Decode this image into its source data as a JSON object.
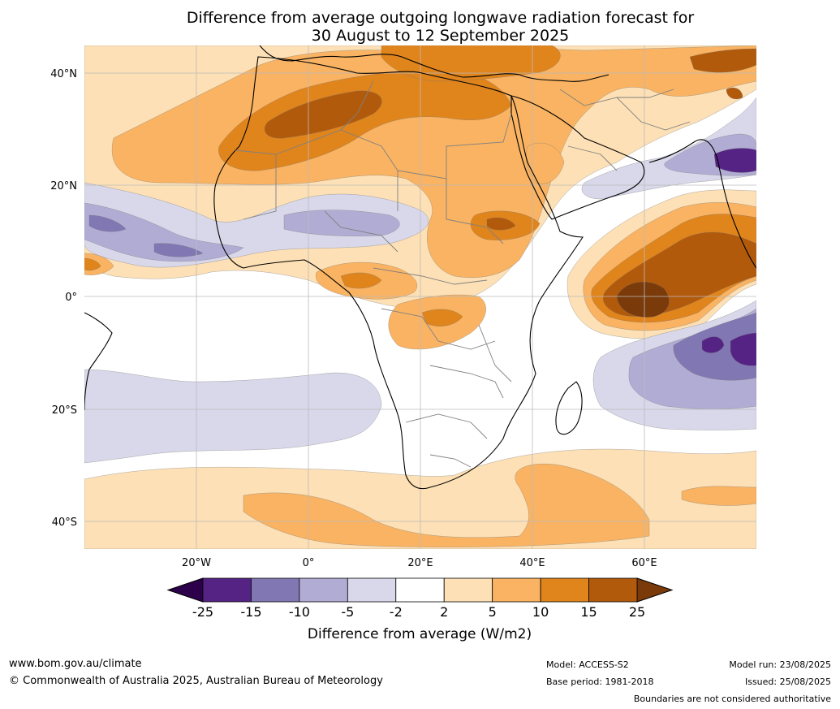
{
  "title": {
    "line1": "Difference from average outgoing longwave radiation forecast for",
    "line2": "30 August to 12 September 2025"
  },
  "map": {
    "lat_ticks": [
      "40°N",
      "20°N",
      "0°",
      "20°S",
      "40°S"
    ],
    "lon_ticks": [
      "20°W",
      "0°",
      "20°E",
      "40°E",
      "60°E"
    ],
    "colors": {
      "ocean_bg": "#ffffff",
      "p2_5": "#fde0b5",
      "p5_10": "#f9b362",
      "p10_15": "#e0841c",
      "p15_25": "#b25a0c",
      "p25": "#7a3a0a",
      "n2_5": "#d8d8ea",
      "n5_10": "#b1acd3",
      "n10_15": "#8177b2",
      "n15_25": "#542384",
      "n25": "#2d004b",
      "coast": "#000000",
      "border": "#808080",
      "grid": "#bbbbbb"
    }
  },
  "colorbar": {
    "labels": [
      "-25",
      "-15",
      "-10",
      "-5",
      "-2",
      "2",
      "5",
      "10",
      "15",
      "25"
    ],
    "colors": [
      "#542384",
      "#8177b2",
      "#b1acd3",
      "#d8d8ea",
      "#ffffff",
      "#fde0b5",
      "#f9b362",
      "#e0841c",
      "#b25a0c"
    ],
    "under_color": "#2d004b",
    "over_color": "#7a3a0a",
    "title": "Difference from average (W/m2)"
  },
  "footer": {
    "website": "www.bom.gov.au/climate",
    "copyright": "© Commonwealth of Australia 2025, Australian Bureau of Meteorology",
    "model": "Model: ACCESS-S2",
    "base_period": "Base period: 1981-2018",
    "model_run": "Model run: 23/08/2025",
    "issued": "Issued: 25/08/2025",
    "disclaimer": "Boundaries are not considered authoritative"
  }
}
